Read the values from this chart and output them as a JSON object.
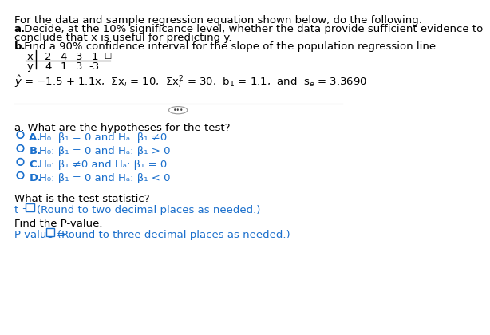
{
  "title_line1": "For the data and sample regression equation shown below, do the following.",
  "title_line2a_bold": "a.",
  "title_line2a_rest": " Decide, at the 10% significance level, whether the data provide sufficient evidence to",
  "title_line3": "conclude that x is useful for predicting y.",
  "title_line4b_bold": "b.",
  "title_line4b_rest": " Find a 90% confidence interval for the slope of the population regression line.",
  "table_x_label": "x",
  "table_y_label": "y",
  "table_x_values": [
    "2",
    "4",
    "3",
    "1"
  ],
  "table_y_values": [
    "4",
    "1",
    "3",
    "-3"
  ],
  "section_a_label": "a. What are the hypotheses for the test?",
  "options": [
    {
      "letter": "A.",
      "text": "H₀: β₁ = 0 and Hₐ: β₁ ≠0"
    },
    {
      "letter": "B.",
      "text": "H₀: β₁ = 0 and Hₐ: β₁ > 0"
    },
    {
      "letter": "C.",
      "text": "H₀: β₁ ≠0 and Hₐ: β₁ = 0"
    },
    {
      "letter": "D.",
      "text": "H₀: β₁ = 0 and Hₐ: β₁ < 0"
    }
  ],
  "test_stat_label": "What is the test statistic?",
  "pvalue_label": "Find the P-value.",
  "text_color": "#000000",
  "blue_color": "#1a6fcc",
  "bg_color": "#ffffff",
  "circle_color": "#1a6fcc",
  "box_color": "#1a6fcc"
}
